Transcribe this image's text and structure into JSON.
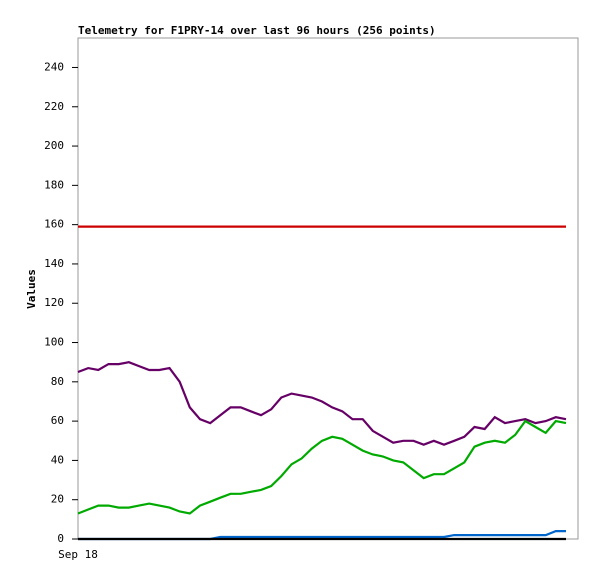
{
  "chart_data": {
    "type": "line",
    "title": "Telemetry for F1PRY-14 over last 96 hours (256 points)",
    "y_label": "Values",
    "categories": [
      "Sep 18",
      null,
      null,
      null,
      null,
      null,
      null,
      null,
      null,
      null,
      null,
      null,
      null,
      null,
      null,
      null,
      null,
      null,
      null,
      null,
      null,
      null,
      null,
      null,
      null,
      null,
      null,
      null,
      null,
      null,
      null,
      null,
      null,
      null,
      null,
      null,
      null,
      null,
      null,
      null,
      null,
      null,
      null,
      null,
      null,
      null,
      null,
      null,
      null
    ],
    "ylim": [
      0,
      255
    ],
    "yticks": [
      0,
      20,
      40,
      60,
      80,
      100,
      120,
      140,
      160,
      180,
      200,
      220,
      240
    ],
    "grid": false,
    "series": [
      {
        "color": "#cc0000",
        "values": [
          159,
          159,
          159,
          159,
          159,
          159,
          159,
          159,
          159,
          159,
          159,
          159,
          159,
          159,
          159,
          159,
          159,
          159,
          159,
          159,
          159,
          159,
          159,
          159,
          159,
          159,
          159,
          159,
          159,
          159,
          159,
          159,
          159,
          159,
          159,
          159,
          159,
          159,
          159,
          159,
          159,
          159,
          159,
          159,
          159,
          159,
          159,
          159,
          159
        ]
      },
      {
        "color": "#660066",
        "values": [
          85,
          87,
          86,
          89,
          89,
          90,
          88,
          86,
          86,
          87,
          80,
          67,
          61,
          59,
          63,
          67,
          67,
          65,
          63,
          66,
          72,
          74,
          73,
          72,
          70,
          67,
          65,
          61,
          61,
          55,
          52,
          49,
          50,
          50,
          48,
          50,
          48,
          50,
          52,
          57,
          56,
          62,
          59,
          60,
          61,
          59,
          60,
          62,
          61
        ]
      },
      {
        "color": "#00aa00",
        "values": [
          13,
          15,
          17,
          17,
          16,
          16,
          17,
          18,
          17,
          16,
          14,
          13,
          17,
          19,
          21,
          23,
          23,
          24,
          25,
          27,
          32,
          38,
          41,
          46,
          50,
          52,
          51,
          48,
          45,
          43,
          42,
          40,
          39,
          35,
          31,
          33,
          33,
          36,
          39,
          47,
          49,
          50,
          49,
          53,
          60,
          57,
          54,
          60,
          59
        ]
      },
      {
        "color": "#0066cc",
        "values": [
          0,
          0,
          0,
          0,
          0,
          0,
          0,
          0,
          0,
          0,
          0,
          0,
          0,
          0,
          1,
          1,
          1,
          1,
          1,
          1,
          1,
          1,
          1,
          1,
          1,
          1,
          1,
          1,
          1,
          1,
          1,
          1,
          1,
          1,
          1,
          1,
          1,
          2,
          2,
          2,
          2,
          2,
          2,
          2,
          2,
          2,
          2,
          4,
          4
        ]
      },
      {
        "color": "#000000",
        "values": [
          0,
          0,
          0,
          0,
          0,
          0,
          0,
          0,
          0,
          0,
          0,
          0,
          0,
          0,
          0,
          0,
          0,
          0,
          0,
          0,
          0,
          0,
          0,
          0,
          0,
          0,
          0,
          0,
          0,
          0,
          0,
          0,
          0,
          0,
          0,
          0,
          0,
          0,
          0,
          0,
          0,
          0,
          0,
          0,
          0,
          0,
          0,
          0,
          0
        ]
      }
    ]
  }
}
